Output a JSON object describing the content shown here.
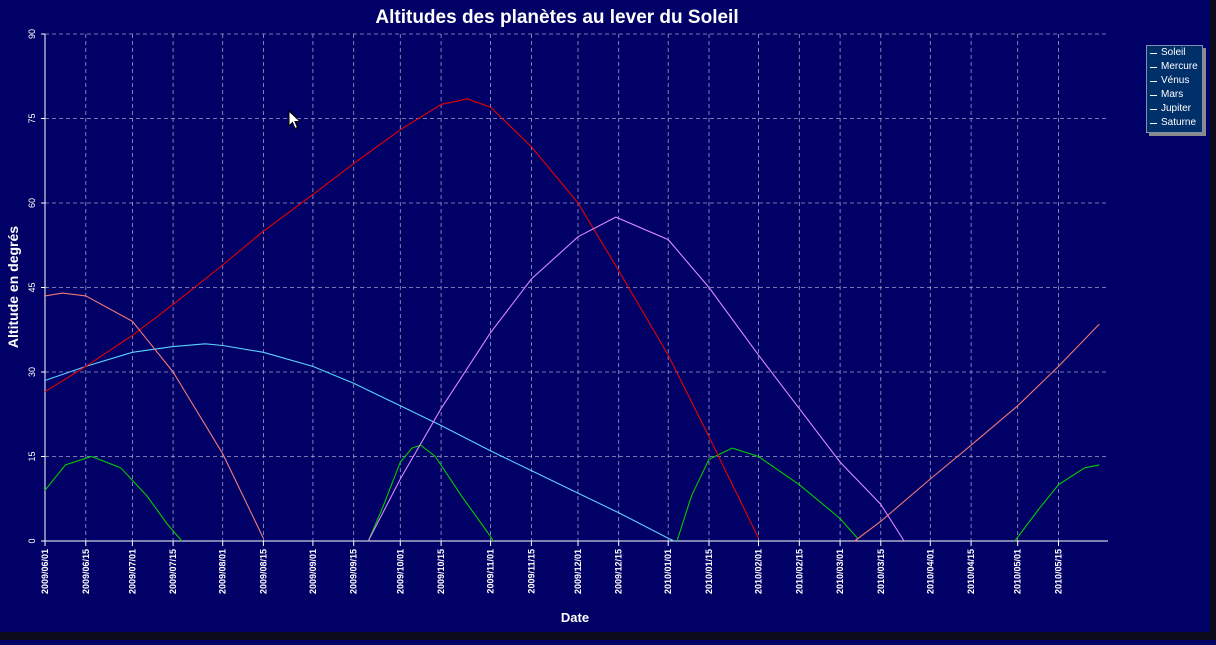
{
  "chart_data": {
    "type": "line",
    "title": "Altitudes des planètes au lever du Soleil",
    "xlabel": "Date",
    "ylabel": "Altitude en degrés",
    "xlim": [
      "2009/06/01",
      "2010/06/01"
    ],
    "ylim": [
      0,
      90
    ],
    "yticks": [
      "0",
      "15",
      "30",
      "45",
      "60",
      "75",
      "90"
    ],
    "xticks": [
      "2009/06/01",
      "2009/06/15",
      "2009/07/01",
      "2009/07/15",
      "2009/08/01",
      "2009/08/15",
      "2009/09/01",
      "2009/09/15",
      "2009/10/01",
      "2009/10/15",
      "2009/11/01",
      "2009/11/15",
      "2009/12/01",
      "2009/12/15",
      "2010/01/01",
      "2010/01/15",
      "2010/02/01",
      "2010/02/15",
      "2010/03/01",
      "2010/03/15",
      "2010/04/01",
      "2010/04/15",
      "2010/05/01",
      "2010/05/15"
    ],
    "grid": true,
    "legend_position": "right",
    "series": [
      {
        "name": "Soleil",
        "color": "#ffff00",
        "points": []
      },
      {
        "name": "Mercure",
        "color": "#00cc00",
        "points": [
          [
            "2009/06/01",
            9
          ],
          [
            "2009/06/08",
            13.5
          ],
          [
            "2009/06/17",
            15
          ],
          [
            "2009/06/27",
            13
          ],
          [
            "2009/07/06",
            8
          ],
          [
            "2009/07/13",
            3
          ],
          [
            "2009/07/18",
            0
          ],
          [
            "2009/09/20",
            0
          ],
          [
            "2009/09/25",
            6
          ],
          [
            "2009/10/01",
            14
          ],
          [
            "2009/10/05",
            16.5
          ],
          [
            "2009/10/08",
            17
          ],
          [
            "2009/10/13",
            15
          ],
          [
            "2009/10/22",
            8
          ],
          [
            "2009/10/31",
            1.5
          ],
          [
            "2009/11/02",
            0
          ],
          [
            "2010/01/04",
            0
          ],
          [
            "2010/01/09",
            8
          ],
          [
            "2010/01/15",
            14.5
          ],
          [
            "2010/01/23",
            16.5
          ],
          [
            "2010/02/01",
            15
          ],
          [
            "2010/02/15",
            10
          ],
          [
            "2010/03/01",
            4
          ],
          [
            "2010/03/07",
            0.5
          ],
          [
            "2010/04/30",
            0
          ],
          [
            "2010/05/08",
            5.5
          ],
          [
            "2010/05/15",
            10
          ],
          [
            "2010/05/24",
            13
          ],
          [
            "2010/05/29",
            13.5
          ]
        ]
      },
      {
        "name": "Vénus",
        "color": "#5ad2ff",
        "points": [
          [
            "2009/06/01",
            28.5
          ],
          [
            "2009/06/15",
            31
          ],
          [
            "2009/07/01",
            33.5
          ],
          [
            "2009/07/15",
            34.5
          ],
          [
            "2009/07/26",
            35
          ],
          [
            "2009/08/01",
            34.7
          ],
          [
            "2009/08/15",
            33.5
          ],
          [
            "2009/09/01",
            31
          ],
          [
            "2009/09/15",
            28
          ],
          [
            "2009/10/01",
            24
          ],
          [
            "2009/10/15",
            20.5
          ],
          [
            "2009/11/01",
            16
          ],
          [
            "2009/11/15",
            12.5
          ],
          [
            "2009/12/01",
            8.5
          ],
          [
            "2009/12/15",
            5
          ],
          [
            "2010/01/01",
            0.5
          ],
          [
            "2010/01/03",
            0
          ]
        ]
      },
      {
        "name": "Mars",
        "color": "#e80000",
        "points": [
          [
            "2009/06/01",
            26.5
          ],
          [
            "2009/06/15",
            31
          ],
          [
            "2009/07/01",
            36.5
          ],
          [
            "2009/07/15",
            42
          ],
          [
            "2009/08/01",
            49
          ],
          [
            "2009/08/15",
            55
          ],
          [
            "2009/09/01",
            61.5
          ],
          [
            "2009/09/15",
            67
          ],
          [
            "2009/10/01",
            73
          ],
          [
            "2009/10/15",
            77.5
          ],
          [
            "2009/10/24",
            78.5
          ],
          [
            "2009/11/01",
            77
          ],
          [
            "2009/11/15",
            70
          ],
          [
            "2009/12/01",
            60
          ],
          [
            "2009/12/15",
            48
          ],
          [
            "2010/01/01",
            33
          ],
          [
            "2010/01/15",
            18.5
          ],
          [
            "2010/02/01",
            0.5
          ]
        ]
      },
      {
        "name": "Jupiter",
        "color": "#f07878",
        "points": [
          [
            "2009/06/01",
            43.5
          ],
          [
            "2009/06/07",
            44
          ],
          [
            "2009/06/15",
            43.5
          ],
          [
            "2009/07/01",
            39
          ],
          [
            "2009/07/15",
            30
          ],
          [
            "2009/08/01",
            15.5
          ],
          [
            "2009/08/15",
            0.5
          ],
          [
            "2010/03/06",
            0
          ],
          [
            "2010/03/15",
            3.5
          ],
          [
            "2010/04/01",
            11
          ],
          [
            "2010/04/15",
            17
          ],
          [
            "2010/05/01",
            24
          ],
          [
            "2010/05/15",
            31
          ],
          [
            "2010/05/29",
            38.5
          ]
        ]
      },
      {
        "name": "Saturne",
        "color": "#dd88ff",
        "points": [
          [
            "2009/09/20",
            0
          ],
          [
            "2009/10/01",
            11
          ],
          [
            "2009/10/15",
            23.5
          ],
          [
            "2009/11/01",
            37
          ],
          [
            "2009/11/15",
            46.5
          ],
          [
            "2009/12/01",
            54
          ],
          [
            "2009/12/14",
            57.5
          ],
          [
            "2010/01/01",
            53.5
          ],
          [
            "2010/01/15",
            45
          ],
          [
            "2010/02/01",
            33
          ],
          [
            "2010/02/15",
            23.5
          ],
          [
            "2010/03/01",
            14
          ],
          [
            "2010/03/15",
            6.5
          ],
          [
            "2010/03/23",
            0
          ]
        ]
      }
    ]
  }
}
